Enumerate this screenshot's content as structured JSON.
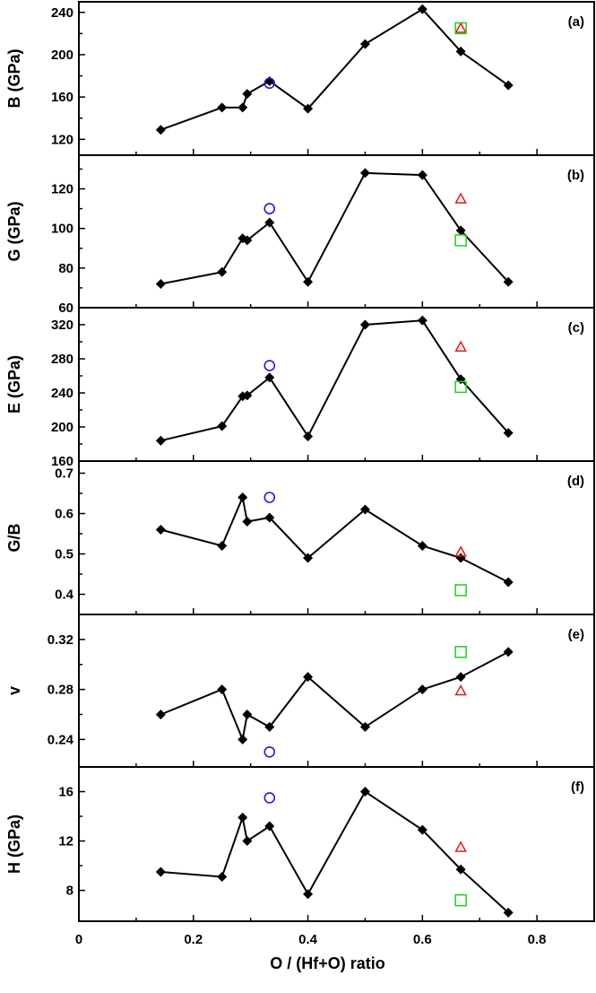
{
  "figure": {
    "xlabel": "O / (Hf+O) ratio",
    "xlim": [
      0,
      0.9
    ],
    "xticks": [
      "0",
      "0.2",
      "0.4",
      "0.6",
      "0.8"
    ],
    "xtick_values": [
      0,
      0.2,
      0.4,
      0.6,
      0.8
    ],
    "colors": {
      "line": "#000000",
      "circle": "#1f1fd0",
      "triangle": "#e01818",
      "square": "#22cc22"
    }
  },
  "chart_data": [
    {
      "type": "line",
      "panel": "(a)",
      "ylabel": "B (GPa)",
      "ylim": [
        105,
        250
      ],
      "yticks": [
        120,
        160,
        200,
        240
      ],
      "x": [
        0.143,
        0.25,
        0.286,
        0.294,
        0.333,
        0.4,
        0.5,
        0.6,
        0.667,
        0.75
      ],
      "values": [
        129,
        150,
        150,
        163,
        175,
        149,
        210,
        243,
        203,
        171
      ],
      "markers": [
        {
          "shape": "circle",
          "x": 0.333,
          "y": 173
        },
        {
          "shape": "triangle",
          "x": 0.667,
          "y": 225
        },
        {
          "shape": "square",
          "x": 0.667,
          "y": 225
        }
      ]
    },
    {
      "type": "line",
      "panel": "(b)",
      "ylabel": "G (GPa)",
      "ylim": [
        60,
        137
      ],
      "yticks": [
        60,
        80,
        100,
        120
      ],
      "x": [
        0.143,
        0.25,
        0.286,
        0.294,
        0.333,
        0.4,
        0.5,
        0.6,
        0.667,
        0.75
      ],
      "values": [
        72,
        78,
        95,
        94,
        103,
        73,
        128,
        127,
        99,
        73
      ],
      "markers": [
        {
          "shape": "circle",
          "x": 0.333,
          "y": 110
        },
        {
          "shape": "triangle",
          "x": 0.667,
          "y": 115
        },
        {
          "shape": "square",
          "x": 0.667,
          "y": 94
        }
      ]
    },
    {
      "type": "line",
      "panel": "(c)",
      "ylabel": "E (GPa)",
      "ylim": [
        160,
        340
      ],
      "yticks": [
        160,
        200,
        240,
        280,
        320
      ],
      "x": [
        0.143,
        0.25,
        0.286,
        0.294,
        0.333,
        0.4,
        0.5,
        0.6,
        0.667,
        0.75
      ],
      "values": [
        184,
        201,
        236,
        237,
        258,
        189,
        320,
        325,
        256,
        193
      ],
      "markers": [
        {
          "shape": "circle",
          "x": 0.333,
          "y": 272
        },
        {
          "shape": "triangle",
          "x": 0.667,
          "y": 294
        },
        {
          "shape": "square",
          "x": 0.667,
          "y": 247
        }
      ]
    },
    {
      "type": "line",
      "panel": "(d)",
      "ylabel": "G/B",
      "ylim": [
        0.35,
        0.73
      ],
      "yticks": [
        "0.4",
        "0.5",
        "0.6",
        "0.7"
      ],
      "ytick_values": [
        0.4,
        0.5,
        0.6,
        0.7
      ],
      "x": [
        0.143,
        0.25,
        0.286,
        0.294,
        0.333,
        0.4,
        0.5,
        0.6,
        0.667,
        0.75
      ],
      "values": [
        0.56,
        0.52,
        0.64,
        0.58,
        0.59,
        0.49,
        0.61,
        0.52,
        0.49,
        0.43
      ],
      "markers": [
        {
          "shape": "circle",
          "x": 0.333,
          "y": 0.64
        },
        {
          "shape": "triangle",
          "x": 0.667,
          "y": 0.505
        },
        {
          "shape": "square",
          "x": 0.667,
          "y": 0.41
        }
      ]
    },
    {
      "type": "line",
      "panel": "(e)",
      "ylabel": "v",
      "ylim": [
        0.218,
        0.34
      ],
      "yticks": [
        "0.24",
        "0.28",
        "0.32"
      ],
      "ytick_values": [
        0.24,
        0.28,
        0.32
      ],
      "x": [
        0.143,
        0.25,
        0.286,
        0.294,
        0.333,
        0.4,
        0.5,
        0.6,
        0.667,
        0.75
      ],
      "values": [
        0.26,
        0.28,
        0.24,
        0.26,
        0.25,
        0.29,
        0.25,
        0.28,
        0.29,
        0.31
      ],
      "markers": [
        {
          "shape": "circle",
          "x": 0.333,
          "y": 0.23
        },
        {
          "shape": "triangle",
          "x": 0.667,
          "y": 0.279
        },
        {
          "shape": "square",
          "x": 0.667,
          "y": 0.31
        }
      ]
    },
    {
      "type": "line",
      "panel": "(f)",
      "ylabel": "H (GPa)",
      "ylim": [
        5.5,
        18
      ],
      "yticks": [
        8,
        12,
        16
      ],
      "x": [
        0.143,
        0.25,
        0.286,
        0.294,
        0.333,
        0.4,
        0.5,
        0.6,
        0.667,
        0.75
      ],
      "values": [
        9.5,
        9.1,
        13.9,
        12.0,
        13.2,
        7.7,
        16.0,
        12.9,
        9.7,
        6.2
      ],
      "markers": [
        {
          "shape": "circle",
          "x": 0.333,
          "y": 15.5
        },
        {
          "shape": "triangle",
          "x": 0.667,
          "y": 11.5
        },
        {
          "shape": "square",
          "x": 0.667,
          "y": 7.2
        }
      ]
    }
  ]
}
